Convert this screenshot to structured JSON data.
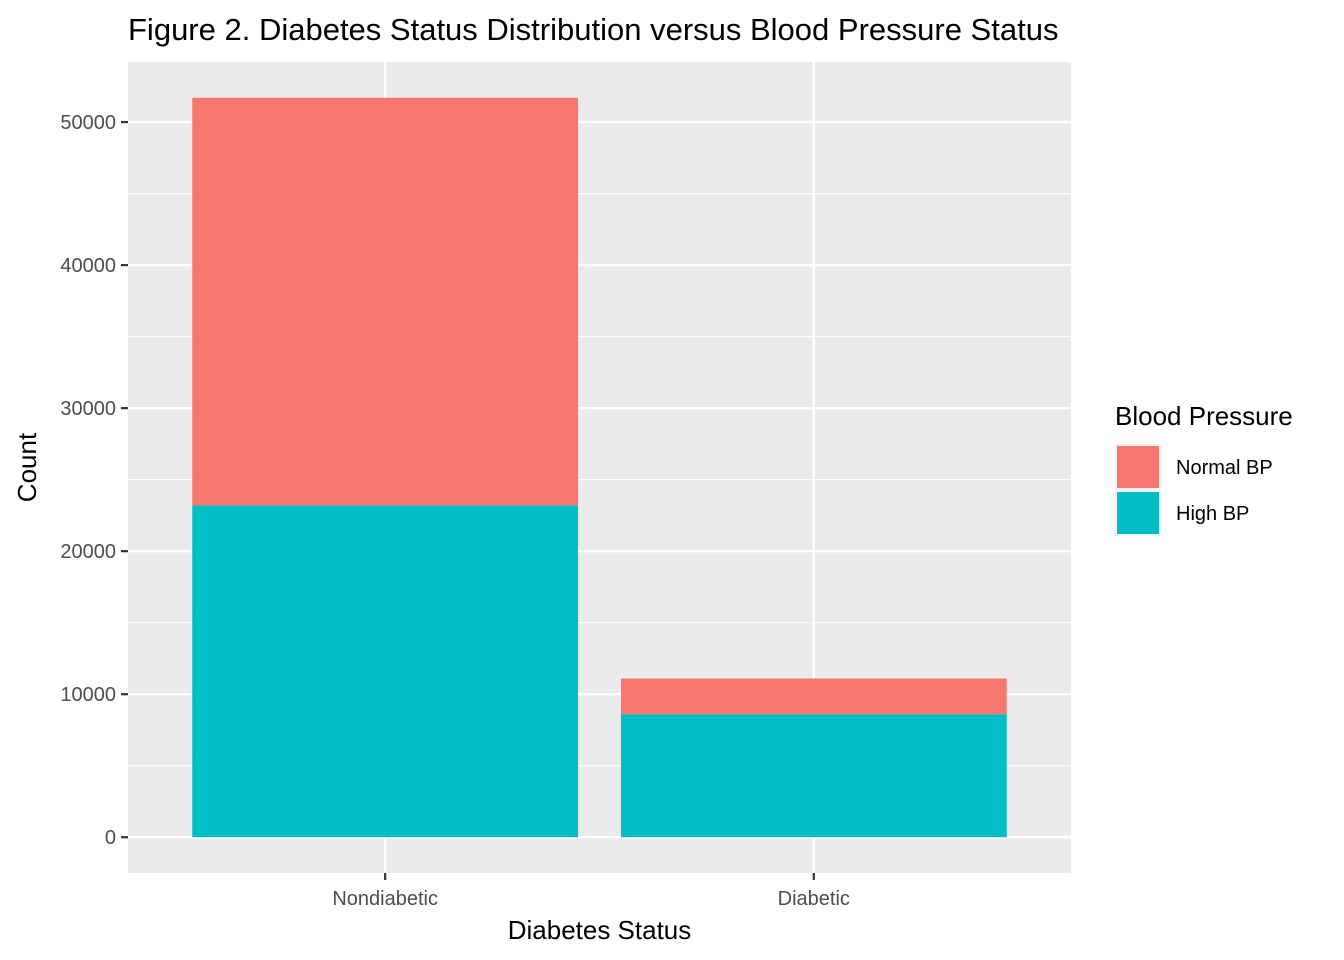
{
  "chart_data": {
    "type": "bar",
    "stacked": true,
    "title": "Figure 2. Diabetes Status Distribution versus Blood Pressure Status",
    "xlabel": "Diabetes Status",
    "ylabel": "Count",
    "categories": [
      "Nondiabetic",
      "Diabetic"
    ],
    "series": [
      {
        "name": "High BP",
        "color": "#00BFC4",
        "values": [
          23200,
          8600
        ]
      },
      {
        "name": "Normal BP",
        "color": "#F8766D",
        "values": [
          28500,
          2500
        ]
      }
    ],
    "ylim": [
      -2500,
      54200
    ],
    "yticks": [
      0,
      10000,
      20000,
      30000,
      40000,
      50000
    ],
    "ytick_labels": [
      "0",
      "10000",
      "20000",
      "30000",
      "40000",
      "50000"
    ],
    "grid": true,
    "legend": {
      "title": "Blood Pressure",
      "position": "right",
      "entries": [
        {
          "label": "Normal BP",
          "color": "#F8766D"
        },
        {
          "label": "High BP",
          "color": "#00BFC4"
        }
      ]
    },
    "panel_background": "#EBEBEB",
    "grid_color": "#FFFFFF"
  }
}
